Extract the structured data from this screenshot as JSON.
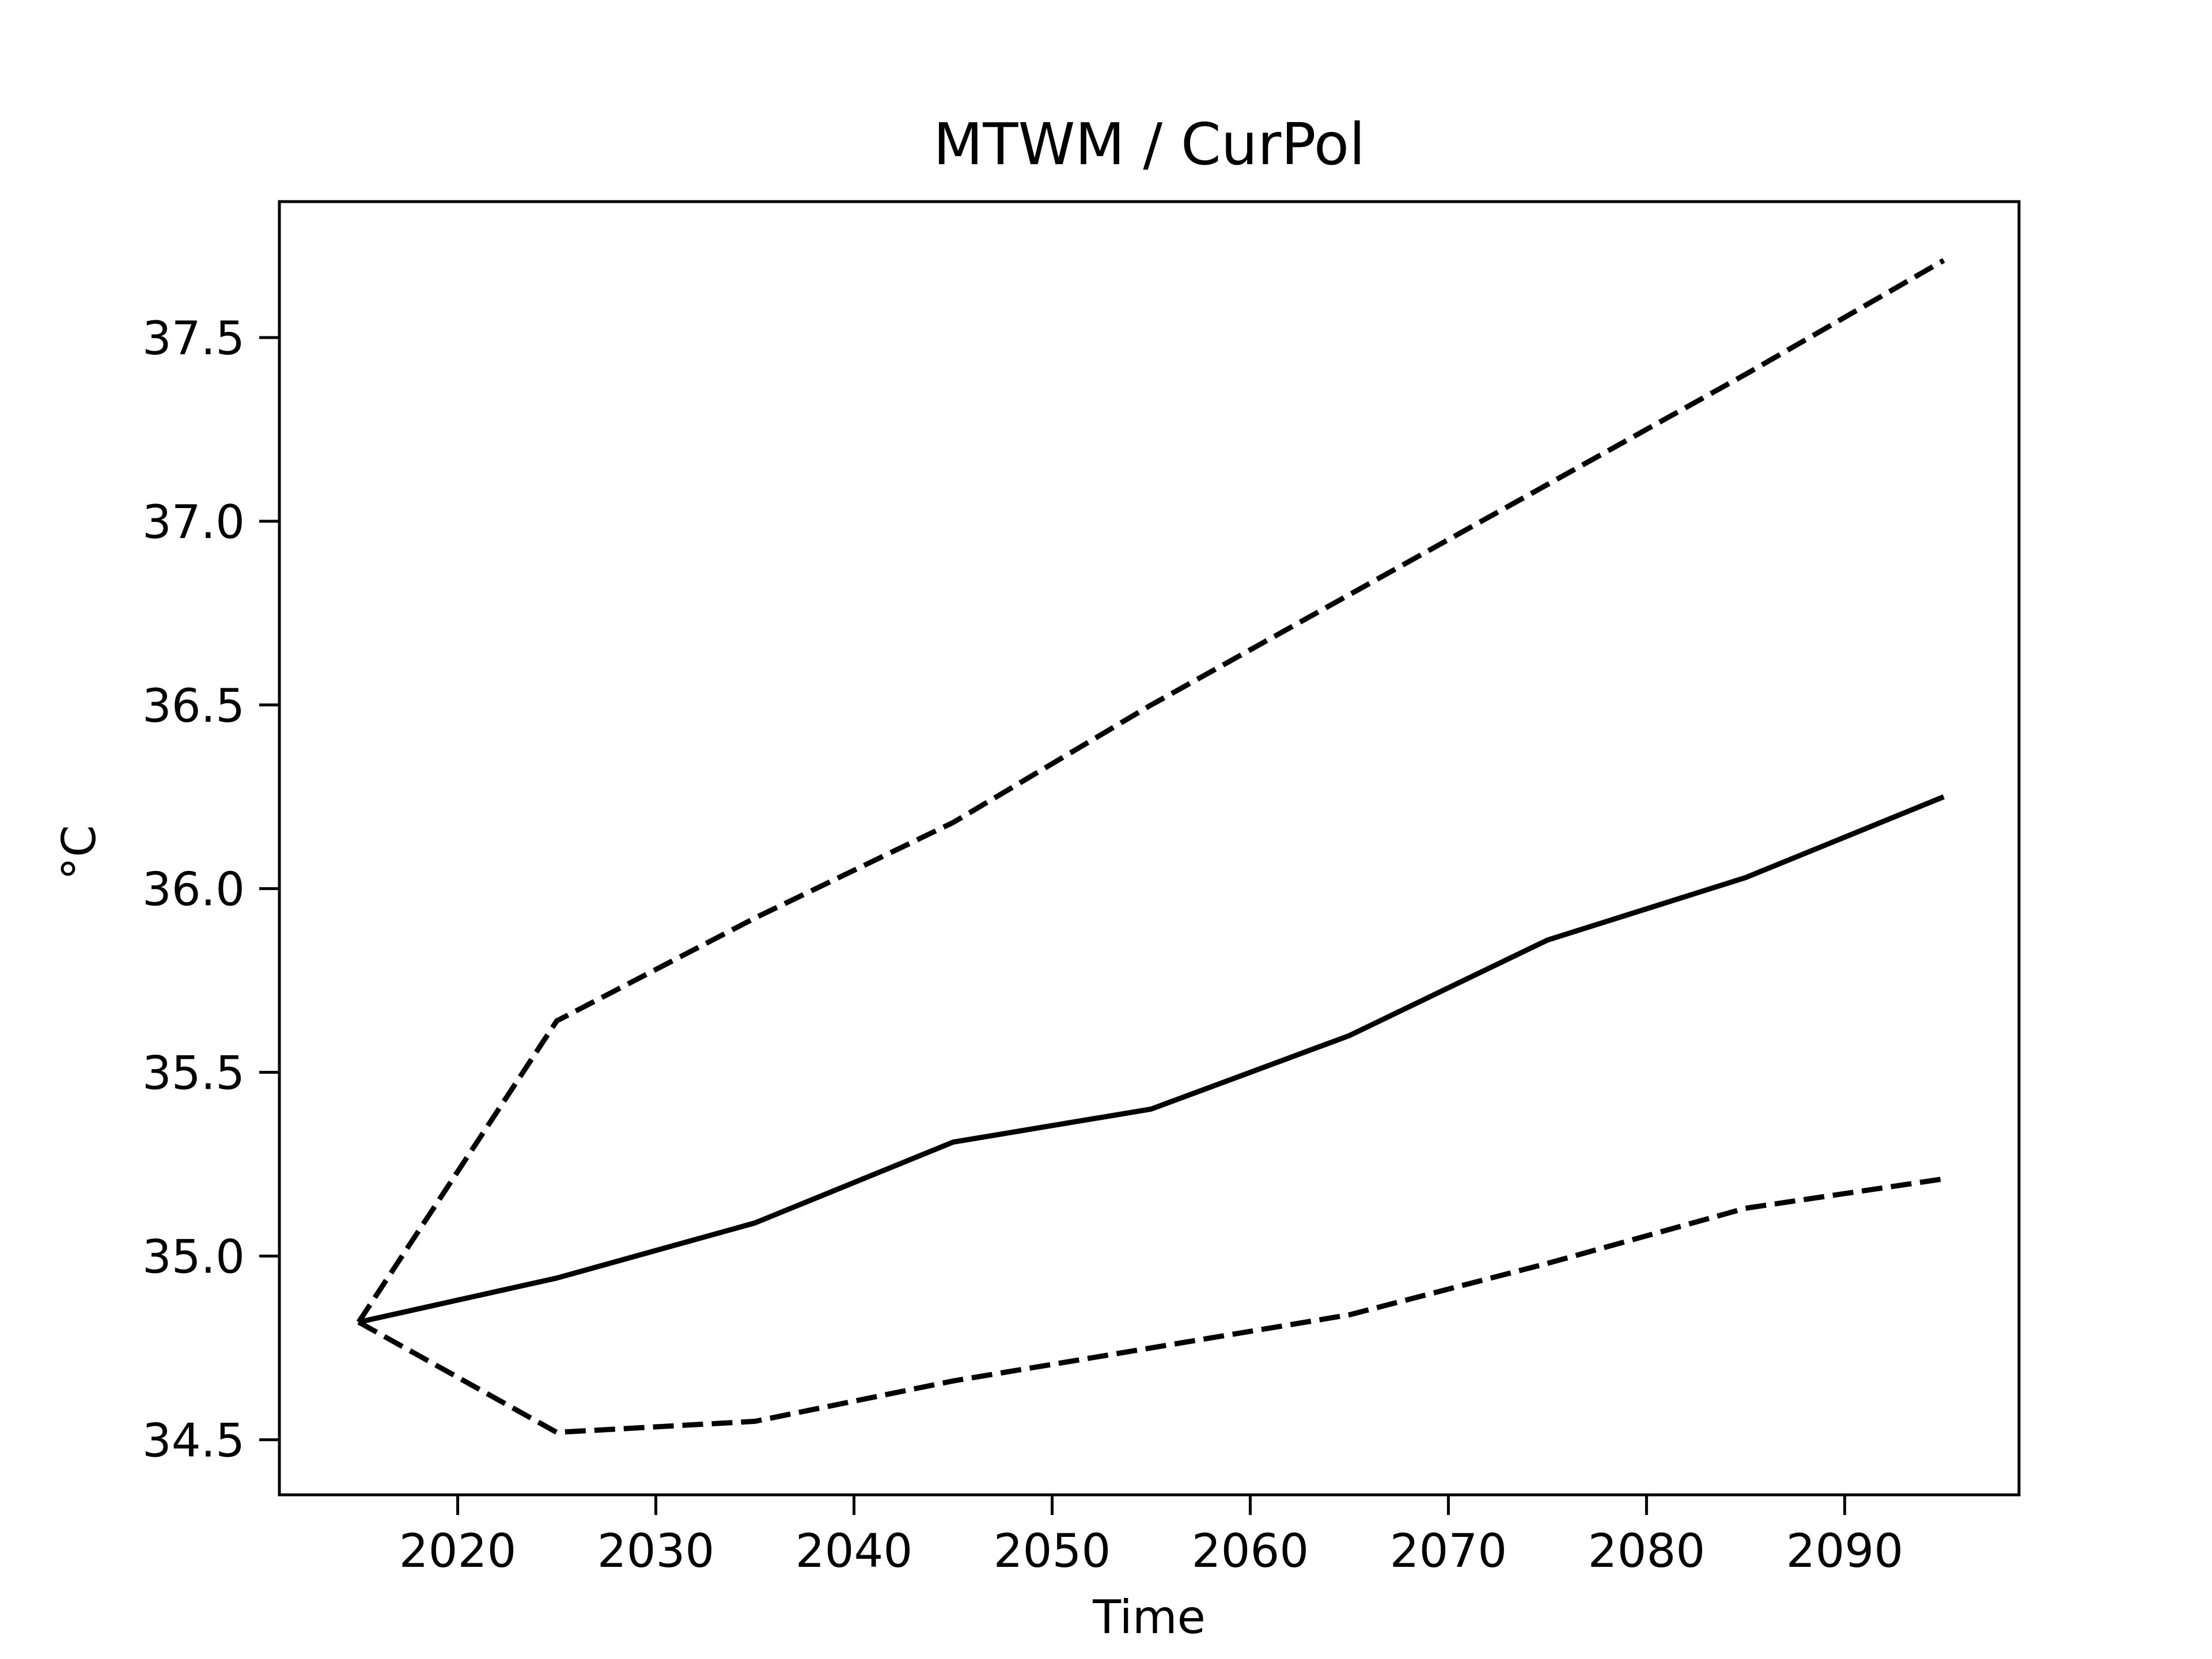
{
  "chart_data": {
    "type": "line",
    "title": "MTWM / CurPol",
    "xlabel": "Time",
    "ylabel": "°C",
    "xlim": [
      2011.0,
      2098.8
    ],
    "ylim": [
      34.35,
      37.87
    ],
    "xticks": [
      2020,
      2030,
      2040,
      2050,
      2060,
      2070,
      2080,
      2090
    ],
    "xtick_labels": [
      "2020",
      "2030",
      "2040",
      "2050",
      "2060",
      "2070",
      "2080",
      "2090"
    ],
    "yticks": [
      34.5,
      35.0,
      35.5,
      36.0,
      36.5,
      37.0,
      37.5
    ],
    "ytick_labels": [
      "34.5",
      "35.0",
      "35.5",
      "36.0",
      "36.5",
      "37.0",
      "37.5"
    ],
    "grid": false,
    "x": [
      2015,
      2025,
      2035,
      2045,
      2055,
      2065,
      2075,
      2085,
      2095
    ],
    "series": [
      {
        "style": "solid",
        "color": "#000000",
        "values": [
          34.82,
          34.94,
          35.09,
          35.31,
          35.4,
          35.6,
          35.86,
          36.03,
          36.25
        ]
      },
      {
        "style": "dashed",
        "color": "#000000",
        "values": [
          34.82,
          35.64,
          35.92,
          36.18,
          36.5,
          36.8,
          37.1,
          37.4,
          37.71
        ]
      },
      {
        "style": "dashed",
        "color": "#000000",
        "values": [
          34.82,
          34.52,
          34.55,
          34.66,
          34.75,
          34.84,
          34.98,
          35.13,
          35.21
        ]
      }
    ]
  }
}
